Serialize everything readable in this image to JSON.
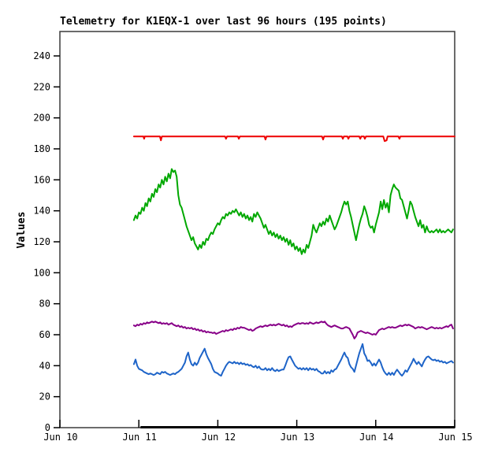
{
  "title": "Telemetry for K1EQX-1 over last 96 hours (195 points)",
  "chart_data": {
    "type": "line",
    "title": "Telemetry for K1EQX-1 over last 96 hours (195 points)",
    "xlabel": "",
    "ylabel": "Values",
    "grid": false,
    "legend": "none",
    "background": "#ffffff",
    "border_color": "#3a3a3a",
    "tick_color": "#000000",
    "x_axis": {
      "unit": "hours from Jun 10 00:00",
      "range": [
        0,
        120
      ],
      "tick_hours": [
        0,
        24,
        48,
        72,
        96,
        120
      ],
      "tick_labels": [
        "Jun 10",
        "Jun 11",
        "Jun 12",
        "Jun 13",
        "Jun 14",
        "Jun 15"
      ]
    },
    "y_axis": {
      "range_shown": [
        0,
        255.8
      ],
      "ticks": [
        0,
        20,
        40,
        60,
        80,
        100,
        120,
        140,
        160,
        180,
        200,
        220,
        240
      ]
    },
    "data_span_bar_hours": [
      24.5,
      120
    ],
    "series": [
      {
        "name": "series-red",
        "color": "#ee0000",
        "points": [
          [
            22.5,
            188
          ],
          [
            25.4,
            188
          ],
          [
            25.6,
            186.5
          ],
          [
            25.8,
            188
          ],
          [
            30.4,
            188
          ],
          [
            30.7,
            185.5
          ],
          [
            31,
            188
          ],
          [
            50.2,
            188
          ],
          [
            50.5,
            186.5
          ],
          [
            50.8,
            188
          ],
          [
            54.1,
            188
          ],
          [
            54.4,
            186.5
          ],
          [
            54.7,
            188
          ],
          [
            62.2,
            188
          ],
          [
            62.5,
            186
          ],
          [
            62.8,
            188
          ],
          [
            79.7,
            188
          ],
          [
            80,
            186
          ],
          [
            80.3,
            188
          ],
          [
            85.7,
            188
          ],
          [
            86,
            186.5
          ],
          [
            86.3,
            188
          ],
          [
            87.4,
            188
          ],
          [
            87.7,
            186.5
          ],
          [
            88,
            188
          ],
          [
            91,
            188
          ],
          [
            91.3,
            186.5
          ],
          [
            91.6,
            188
          ],
          [
            92.4,
            188
          ],
          [
            92.7,
            186.5
          ],
          [
            93,
            188
          ],
          [
            98.3,
            188
          ],
          [
            98.7,
            185
          ],
          [
            99.3,
            185.5
          ],
          [
            99.6,
            188
          ],
          [
            102.9,
            188
          ],
          [
            103.2,
            186.5
          ],
          [
            103.5,
            188
          ],
          [
            120,
            188
          ]
        ]
      },
      {
        "name": "series-green",
        "color": "#00a800",
        "start_hour": 22.5,
        "step_hours": 0.5,
        "values": [
          134,
          137,
          135,
          139,
          138,
          142,
          140,
          145,
          143,
          148,
          146,
          151,
          149,
          154,
          152,
          157,
          155,
          160,
          157,
          162,
          159,
          164,
          161,
          167,
          165,
          166,
          162,
          150,
          144,
          142,
          138,
          134,
          130,
          127,
          124,
          121,
          123,
          119,
          117,
          115,
          118,
          116,
          120,
          118,
          122,
          121,
          124,
          126,
          125,
          128,
          130,
          132,
          131,
          134,
          136,
          135,
          138,
          137,
          139,
          138,
          140,
          139,
          141,
          139,
          137,
          139,
          136,
          138,
          135,
          137,
          134,
          136,
          133,
          138,
          136,
          139,
          137,
          135,
          132,
          129,
          131,
          128,
          125,
          127,
          124,
          126,
          123,
          125,
          122,
          124,
          121,
          123,
          120,
          122,
          118,
          121,
          117,
          119,
          115,
          117,
          114,
          116,
          112,
          115,
          113,
          118,
          116,
          120,
          124,
          131,
          128,
          126,
          129,
          132,
          130,
          133,
          131,
          135,
          133,
          137,
          134,
          131,
          128,
          130,
          133,
          136,
          139,
          143,
          146,
          144,
          146,
          140,
          136,
          131,
          126,
          121,
          126,
          131,
          135,
          138,
          143,
          140,
          136,
          131,
          129,
          130,
          126,
          131,
          135,
          139,
          146,
          141,
          147,
          142,
          145,
          139,
          150,
          154,
          157,
          155,
          154,
          153,
          148,
          147,
          143,
          139,
          135,
          140,
          146,
          144,
          140,
          136,
          133,
          130,
          134,
          129,
          131,
          126,
          130,
          127,
          126,
          127,
          126,
          127,
          128,
          126,
          128,
          126,
          127,
          126,
          127,
          128,
          127,
          126,
          128
        ]
      },
      {
        "name": "series-purple",
        "color": "#880088",
        "start_hour": 22.5,
        "step_hours": 0.5,
        "values": [
          66,
          65.5,
          66.5,
          66,
          67,
          66.5,
          67.5,
          67,
          68,
          67.5,
          68,
          68.5,
          68,
          68.5,
          68,
          67.5,
          68,
          67,
          67.5,
          67,
          67.5,
          66.5,
          67,
          67.5,
          66.5,
          66,
          65.5,
          66,
          65,
          65.5,
          64.5,
          65,
          64,
          64.5,
          64,
          64.5,
          63.5,
          64,
          63,
          63.5,
          62.5,
          63,
          62,
          62.5,
          61.5,
          62,
          61.5,
          61.5,
          61,
          61.5,
          60.5,
          61,
          61.5,
          62,
          62.5,
          62,
          63,
          62.5,
          63,
          63.5,
          63,
          64,
          63.5,
          64.5,
          64,
          65,
          64.5,
          64.5,
          64,
          63.5,
          63,
          63.5,
          62.5,
          63,
          64,
          64.5,
          65,
          65.5,
          65,
          65.5,
          66,
          65.5,
          66,
          66.5,
          66,
          66.5,
          66,
          66.5,
          67,
          66.5,
          66,
          66.5,
          65.5,
          66,
          65,
          65.5,
          65,
          66,
          66.5,
          67,
          67.5,
          67,
          67.5,
          67.5,
          67,
          67.5,
          67,
          68,
          67.5,
          67,
          67.5,
          68,
          67.5,
          68,
          68.5,
          68,
          68.5,
          67,
          66,
          65.5,
          65,
          65.5,
          66,
          65.5,
          65,
          64.5,
          64,
          64,
          64.5,
          65,
          64.5,
          64,
          62,
          60,
          57.5,
          59,
          61.5,
          62,
          62.5,
          62,
          61.5,
          61,
          61.5,
          61,
          60.5,
          60,
          60.5,
          60,
          61.5,
          63,
          63.5,
          64,
          63.5,
          64,
          64.5,
          65,
          64.5,
          65,
          64.5,
          64.5,
          65,
          65.5,
          66,
          65.5,
          66,
          66.5,
          66,
          66.5,
          66,
          65.5,
          65,
          64,
          64.5,
          65,
          64.5,
          65,
          64.5,
          64,
          63.5,
          64,
          64.5,
          65,
          64.5,
          64,
          64.5,
          64,
          64.5,
          64,
          64.5,
          65,
          65.5,
          65,
          66,
          66.5,
          64
        ]
      },
      {
        "name": "series-blue",
        "color": "#1e64c8",
        "start_hour": 22.5,
        "step_hours": 0.5,
        "values": [
          41,
          44,
          40,
          38,
          37.5,
          37,
          36,
          35.5,
          35,
          34.5,
          35,
          34.5,
          34,
          34.5,
          35.5,
          35,
          34.5,
          36,
          35.5,
          36,
          35,
          34.5,
          34,
          34.5,
          35,
          34.5,
          35.5,
          36,
          37,
          38,
          40,
          42,
          46,
          48.5,
          44,
          41,
          40,
          42,
          40.5,
          42,
          45,
          47,
          49,
          51,
          47.5,
          45,
          43,
          41,
          38,
          36,
          35.5,
          35,
          34,
          33.5,
          36,
          38,
          40,
          41.5,
          42.5,
          42,
          41.5,
          42.5,
          41.5,
          42,
          41,
          42,
          41,
          41.5,
          40.5,
          41,
          40,
          40.5,
          39.5,
          39,
          40,
          38.5,
          39.5,
          38,
          37.5,
          37.5,
          38.5,
          37,
          38,
          37,
          38.5,
          37,
          36.5,
          37.5,
          36.5,
          37,
          37.5,
          37.5,
          40,
          43,
          45.5,
          46,
          44,
          42,
          40,
          39,
          38,
          38.5,
          37.5,
          38.5,
          37.5,
          38.5,
          37,
          38.5,
          37.5,
          38,
          37,
          38,
          36.5,
          36,
          35,
          35,
          36.5,
          35,
          36,
          35,
          37,
          36,
          37.5,
          38,
          40,
          42,
          44,
          46.5,
          48.5,
          46,
          45,
          41,
          39,
          38,
          36,
          40,
          44,
          48,
          51,
          54,
          48,
          46,
          43,
          43.5,
          42,
          40,
          41.5,
          40,
          42,
          44,
          42,
          39,
          36.5,
          35,
          34,
          35.5,
          34,
          35.5,
          34,
          36,
          37.5,
          36,
          34.5,
          33.5,
          35,
          37,
          36,
          38,
          40,
          42,
          44.5,
          42.5,
          41,
          42.5,
          41,
          39.5,
          42,
          44,
          45.5,
          46,
          45,
          44,
          43.5,
          44,
          43,
          43.5,
          42.5,
          43,
          42,
          42.5,
          41.5,
          42,
          42.5,
          43,
          42
        ]
      }
    ]
  }
}
